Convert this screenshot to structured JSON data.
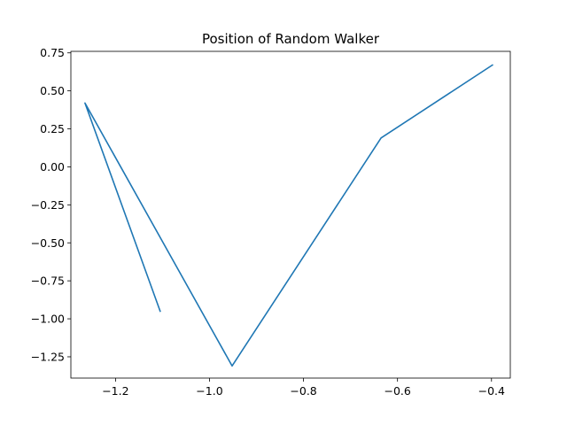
{
  "chart_data": {
    "type": "line",
    "title": "Position of Random Walker",
    "xlabel": "",
    "ylabel": "",
    "xlim": [
      -1.295,
      -0.36
    ],
    "ylim": [
      -1.39,
      0.76
    ],
    "x_ticks": [
      -1.2,
      -1.0,
      -0.8,
      -0.6,
      -0.4
    ],
    "x_tick_labels": [
      "−1.2",
      "−1.0",
      "−0.8",
      "−0.6",
      "−0.4"
    ],
    "y_ticks": [
      0.75,
      0.5,
      0.25,
      0.0,
      -0.25,
      -0.5,
      -0.75,
      -1.0,
      -1.25
    ],
    "y_tick_labels": [
      "0.75",
      "0.50",
      "0.25",
      "0.00",
      "−0.25",
      "−0.50",
      "−0.75",
      "−1.00",
      "−1.25"
    ],
    "grid": false,
    "series": [
      {
        "color": "#1f77b4",
        "x": [
          -1.105,
          -1.265,
          -0.952,
          -0.635,
          -0.398
        ],
        "y": [
          -0.95,
          0.42,
          -1.31,
          0.19,
          0.67
        ]
      }
    ]
  }
}
